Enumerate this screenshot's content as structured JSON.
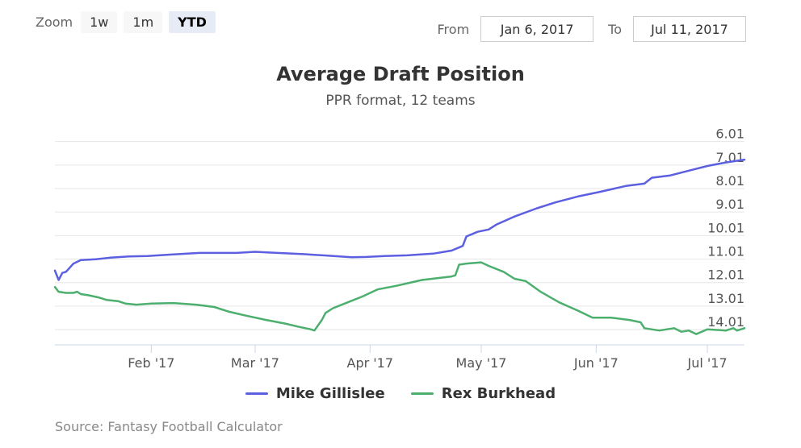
{
  "range_selector": {
    "zoom_label": "Zoom",
    "buttons": [
      "1w",
      "1m",
      "YTD"
    ],
    "active": "YTD",
    "from_label": "From",
    "from_value": "Jan 6, 2017",
    "to_label": "To",
    "to_value": "Jul 11, 2017"
  },
  "source": "Source: Fantasy Football Calculator",
  "chart_data": {
    "type": "line",
    "title": "Average Draft Position",
    "subtitle": "PPR format, 12 teams",
    "y_axis": {
      "reversed": true,
      "side": "right",
      "range": [
        5.61,
        14.66
      ],
      "ticks": [
        "6.01",
        "7.01",
        "8.01",
        "9.01",
        "10.01",
        "11.01",
        "12.01",
        "13.01",
        "14.01"
      ],
      "tick_values": [
        6.01,
        7.01,
        8.01,
        9.01,
        10.01,
        11.01,
        12.01,
        13.01,
        14.01
      ]
    },
    "x_axis": {
      "range": [
        "2017-01-06",
        "2017-07-11"
      ],
      "ticks": [
        {
          "label": "Feb '17",
          "date": "2017-02-01"
        },
        {
          "label": "Mar '17",
          "date": "2017-03-01"
        },
        {
          "label": "Apr '17",
          "date": "2017-04-01"
        },
        {
          "label": "May '17",
          "date": "2017-05-01"
        },
        {
          "label": "Jun '17",
          "date": "2017-06-01"
        },
        {
          "label": "Jul '17",
          "date": "2017-07-01"
        }
      ]
    },
    "grid": true,
    "legend": "bottom-center",
    "series": [
      {
        "name": "Mike Gillislee",
        "color": "#5b5fe0",
        "points": [
          [
            "2017-01-06",
            11.5
          ],
          [
            "2017-01-07",
            11.9
          ],
          [
            "2017-01-08",
            11.6
          ],
          [
            "2017-01-09",
            11.55
          ],
          [
            "2017-01-11",
            11.2
          ],
          [
            "2017-01-13",
            11.05
          ],
          [
            "2017-01-17",
            11.02
          ],
          [
            "2017-01-21",
            10.95
          ],
          [
            "2017-01-26",
            10.9
          ],
          [
            "2017-01-31",
            10.88
          ],
          [
            "2017-02-06",
            10.82
          ],
          [
            "2017-02-14",
            10.75
          ],
          [
            "2017-02-24",
            10.75
          ],
          [
            "2017-03-01",
            10.7
          ],
          [
            "2017-03-07",
            10.75
          ],
          [
            "2017-03-14",
            10.8
          ],
          [
            "2017-03-21",
            10.87
          ],
          [
            "2017-03-27",
            10.93
          ],
          [
            "2017-03-31",
            10.92
          ],
          [
            "2017-04-05",
            10.88
          ],
          [
            "2017-04-11",
            10.85
          ],
          [
            "2017-04-18",
            10.78
          ],
          [
            "2017-04-23",
            10.65
          ],
          [
            "2017-04-26",
            10.45
          ],
          [
            "2017-04-27",
            10.05
          ],
          [
            "2017-04-30",
            9.85
          ],
          [
            "2017-05-03",
            9.75
          ],
          [
            "2017-05-05",
            9.55
          ],
          [
            "2017-05-10",
            9.2
          ],
          [
            "2017-05-16",
            8.85
          ],
          [
            "2017-05-21",
            8.6
          ],
          [
            "2017-05-27",
            8.35
          ],
          [
            "2017-06-02",
            8.15
          ],
          [
            "2017-06-09",
            7.9
          ],
          [
            "2017-06-14",
            7.8
          ],
          [
            "2017-06-16",
            7.55
          ],
          [
            "2017-06-21",
            7.45
          ],
          [
            "2017-06-26",
            7.25
          ],
          [
            "2017-07-01",
            7.05
          ],
          [
            "2017-07-06",
            6.9
          ],
          [
            "2017-07-11",
            6.78
          ]
        ]
      },
      {
        "name": "Rex Burkhead",
        "color": "#4caf6e",
        "points": [
          [
            "2017-01-06",
            12.2
          ],
          [
            "2017-01-07",
            12.4
          ],
          [
            "2017-01-09",
            12.45
          ],
          [
            "2017-01-11",
            12.45
          ],
          [
            "2017-01-12",
            12.4
          ],
          [
            "2017-01-13",
            12.5
          ],
          [
            "2017-01-15",
            12.55
          ],
          [
            "2017-01-18",
            12.65
          ],
          [
            "2017-01-20",
            12.75
          ],
          [
            "2017-01-23",
            12.8
          ],
          [
            "2017-01-25",
            12.9
          ],
          [
            "2017-01-28",
            12.95
          ],
          [
            "2017-02-01",
            12.9
          ],
          [
            "2017-02-07",
            12.88
          ],
          [
            "2017-02-13",
            12.95
          ],
          [
            "2017-02-18",
            13.05
          ],
          [
            "2017-02-22",
            13.25
          ],
          [
            "2017-02-26",
            13.4
          ],
          [
            "2017-03-04",
            13.6
          ],
          [
            "2017-03-09",
            13.75
          ],
          [
            "2017-03-13",
            13.9
          ],
          [
            "2017-03-16",
            14.0
          ],
          [
            "2017-03-17",
            14.05
          ],
          [
            "2017-03-19",
            13.6
          ],
          [
            "2017-03-20",
            13.3
          ],
          [
            "2017-03-22",
            13.1
          ],
          [
            "2017-03-26",
            12.85
          ],
          [
            "2017-03-30",
            12.6
          ],
          [
            "2017-04-03",
            12.3
          ],
          [
            "2017-04-08",
            12.15
          ],
          [
            "2017-04-15",
            11.9
          ],
          [
            "2017-04-23",
            11.75
          ],
          [
            "2017-04-24",
            11.7
          ],
          [
            "2017-04-25",
            11.25
          ],
          [
            "2017-04-27",
            11.2
          ],
          [
            "2017-05-01",
            11.15
          ],
          [
            "2017-05-03",
            11.3
          ],
          [
            "2017-05-07",
            11.55
          ],
          [
            "2017-05-10",
            11.85
          ],
          [
            "2017-05-13",
            11.95
          ],
          [
            "2017-05-17",
            12.4
          ],
          [
            "2017-05-22",
            12.85
          ],
          [
            "2017-05-27",
            13.2
          ],
          [
            "2017-05-31",
            13.5
          ],
          [
            "2017-06-05",
            13.5
          ],
          [
            "2017-06-10",
            13.6
          ],
          [
            "2017-06-13",
            13.7
          ],
          [
            "2017-06-14",
            13.95
          ],
          [
            "2017-06-18",
            14.05
          ],
          [
            "2017-06-22",
            13.95
          ],
          [
            "2017-06-24",
            14.1
          ],
          [
            "2017-06-26",
            14.05
          ],
          [
            "2017-06-28",
            14.2
          ],
          [
            "2017-07-01",
            14.0
          ],
          [
            "2017-07-06",
            14.05
          ],
          [
            "2017-07-08",
            13.95
          ],
          [
            "2017-07-09",
            14.05
          ],
          [
            "2017-07-11",
            13.95
          ]
        ]
      }
    ]
  }
}
